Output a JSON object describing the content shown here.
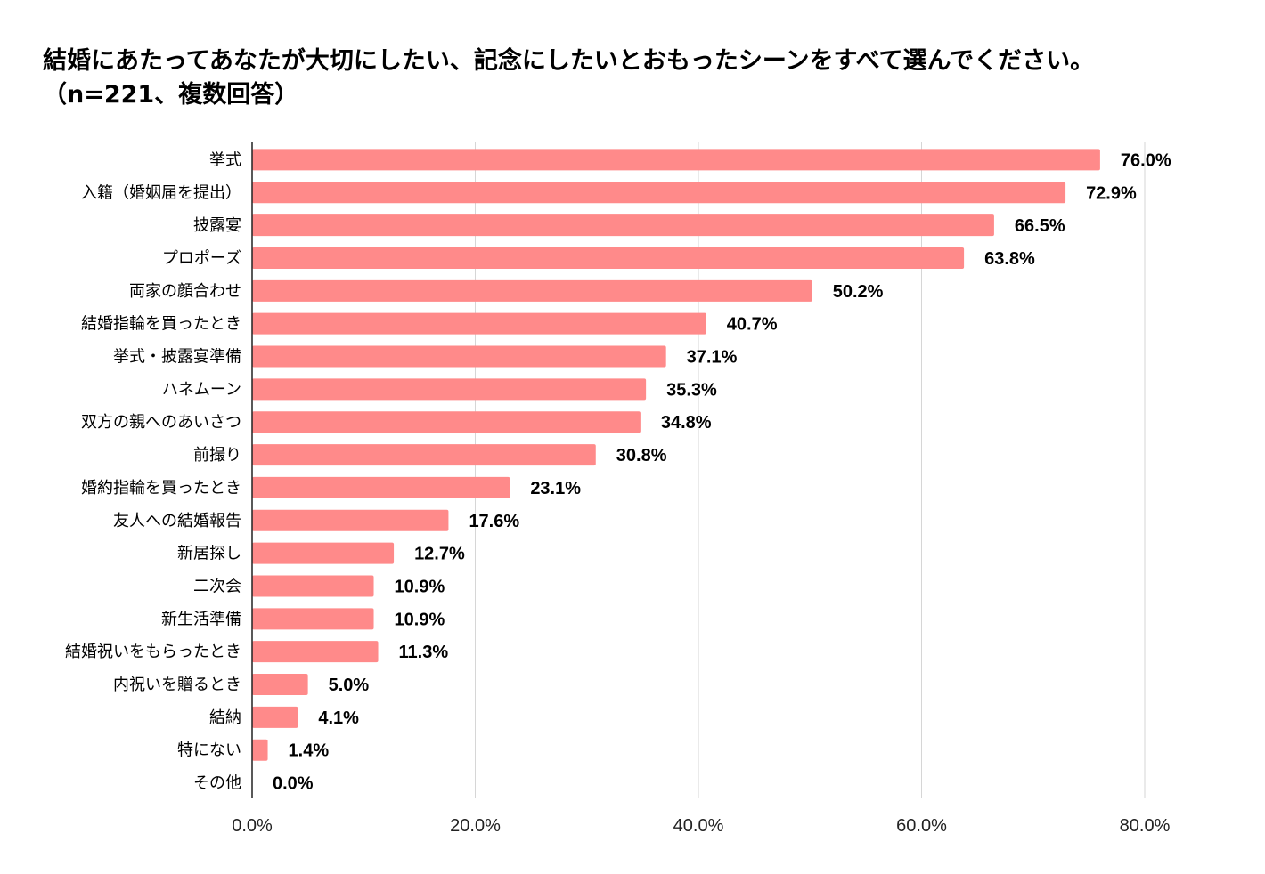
{
  "title_line1": "結婚にあたってあなたが大切にしたい、記念にしたいとおもったシーンをすべて選んでください。",
  "title_line2": "（n=221、複数回答）",
  "colors": {
    "bar": "#ff8a8a",
    "grid": "#d6d6d6",
    "axis": "#222222"
  },
  "chart_data": {
    "type": "bar",
    "orientation": "horizontal",
    "categories": [
      "挙式",
      "入籍（婚姻届を提出）",
      "披露宴",
      "プロポーズ",
      "両家の顔合わせ",
      "結婚指輪を買ったとき",
      "挙式・披露宴準備",
      "ハネムーン",
      "双方の親へのあいさつ",
      "前撮り",
      "婚約指輪を買ったとき",
      "友人への結婚報告",
      "新居探し",
      "二次会",
      "新生活準備",
      "結婚祝いをもらったとき",
      "内祝いを贈るとき",
      "結納",
      "特にない",
      "その他"
    ],
    "values": [
      76.0,
      72.9,
      66.5,
      63.8,
      50.2,
      40.7,
      37.1,
      35.3,
      34.8,
      30.8,
      23.1,
      17.6,
      12.7,
      10.9,
      10.9,
      11.3,
      5.0,
      4.1,
      1.4,
      0.0
    ],
    "value_labels": [
      "76.0%",
      "72.9%",
      "66.5%",
      "63.8%",
      "50.2%",
      "40.7%",
      "37.1%",
      "35.3%",
      "34.8%",
      "30.8%",
      "23.1%",
      "17.6%",
      "12.7%",
      "10.9%",
      "10.9%",
      "11.3%",
      "5.0%",
      "4.1%",
      "1.4%",
      "0.0%"
    ],
    "xlim": [
      0,
      80
    ],
    "xticks": [
      0,
      20,
      40,
      60,
      80
    ],
    "xtick_labels": [
      "0.0%",
      "20.0%",
      "40.0%",
      "60.0%",
      "80.0%"
    ],
    "grid": true,
    "legend": "none"
  }
}
